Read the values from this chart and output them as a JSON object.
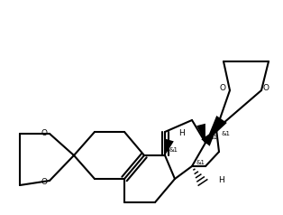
{
  "bg_color": "#ffffff",
  "line_color": "#000000",
  "line_width": 1.5,
  "font_size": 6.5,
  "fig_width": 3.14,
  "fig_height": 2.38,
  "dpi": 100,
  "xlim": [
    0,
    314
  ],
  "ylim": [
    0,
    238
  ]
}
